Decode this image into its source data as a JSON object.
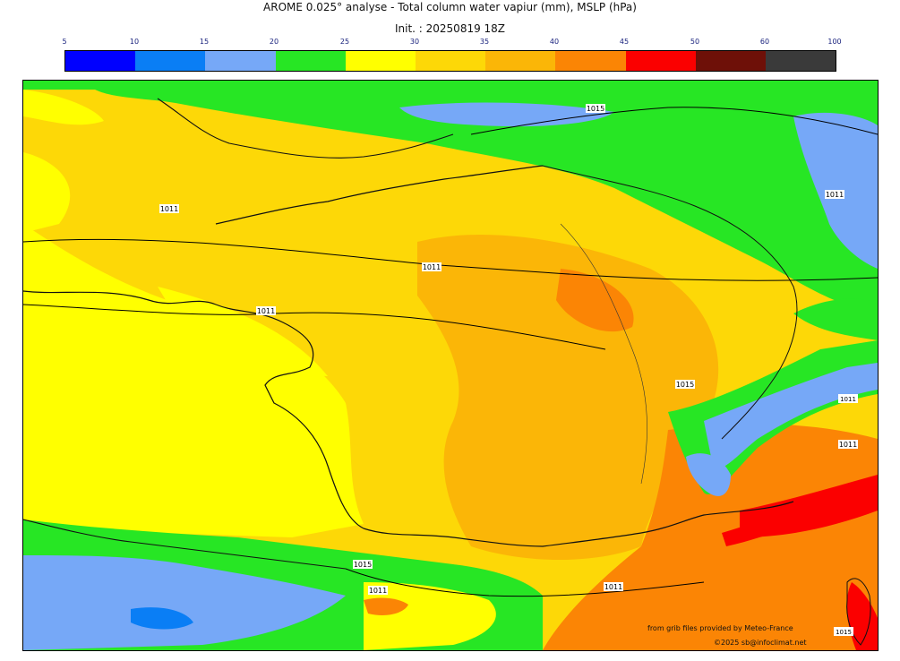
{
  "title": "AROME 0.025° analyse - Total column water vapiur (mm), MSLP (hPa)",
  "init": "Init. : 20250819 18Z",
  "colorbar": {
    "ticks": [
      "5",
      "10",
      "15",
      "20",
      "25",
      "30",
      "35",
      "40",
      "45",
      "50",
      "60",
      "100"
    ],
    "colors": [
      "#0000ff",
      "#0a7ef5",
      "#76a8f7",
      "#27e624",
      "#ffff00",
      "#fdd807",
      "#fbb607",
      "#fb8505",
      "#fb0000",
      "#6e1008",
      "#3a3a3a"
    ]
  },
  "isobar_labels": [
    "1015",
    "1011",
    "1011",
    "1011",
    "1011",
    "1015",
    "1015",
    "1011",
    "1011",
    "1011",
    "1011",
    "1015"
  ],
  "credits": {
    "source": "from grib files provided by Meteo-France",
    "copyright": "©2025 sb@infoclimat.net"
  }
}
